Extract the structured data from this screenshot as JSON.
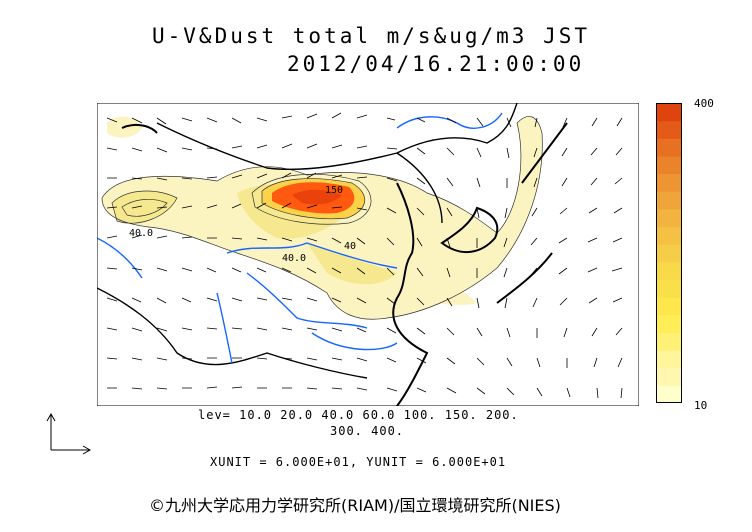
{
  "header": {
    "title_line1": "U-V&Dust total m/s&ug/m3 JST",
    "title_line2": "2012/04/16.21:00:00"
  },
  "colorbar": {
    "max_label": "400",
    "min_label": "10",
    "colors": [
      "#ffffcc",
      "#fff7b0",
      "#fff59a",
      "#fff176",
      "#ffee58",
      "#fde74c",
      "#f9e04a",
      "#f8d94a",
      "#f6cd48",
      "#f4c145",
      "#f2b340",
      "#f0a53a",
      "#ee9533",
      "#eb832b",
      "#e87022",
      "#e45a18",
      "#e0440e"
    ]
  },
  "map": {
    "contour_labels": [
      "150",
      "40.0",
      "40.0",
      "40"
    ],
    "colors": {
      "coast": "#000000",
      "river": "#1565ff",
      "dust_light": "#fbf3c0",
      "dust_mid": "#f7eb9a",
      "dust_high": "#ff5a10"
    }
  },
  "levels": {
    "line1": "lev= 10.0 20.0 40.0 60.0 100. 150. 200.",
    "line2": "300. 400."
  },
  "units": "XUNIT = 6.000E+01, YUNIT = 6.000E+01",
  "credit": "©九州大学応用力学研究所(RIAM)/国立環境研究所(NIES)"
}
